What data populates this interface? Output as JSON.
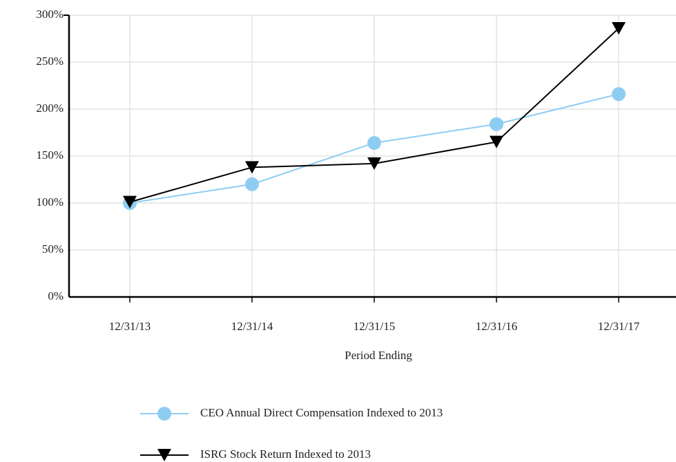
{
  "chart_data": {
    "type": "line",
    "categories": [
      "12/31/13",
      "12/31/14",
      "12/31/15",
      "12/31/16",
      "12/31/17"
    ],
    "series": [
      {
        "name": "CEO Annual Direct Compensation Indexed to 2013",
        "color": "#8ecdf2",
        "marker": "circle",
        "values": [
          100,
          120,
          164,
          184,
          216
        ]
      },
      {
        "name": "ISRG Stock Return Indexed to 2013",
        "color": "#000000",
        "marker": "triangle-down",
        "values": [
          101,
          138,
          142,
          165,
          286
        ]
      }
    ],
    "xlabel": "Period Ending",
    "ylim": [
      0,
      300
    ],
    "yticks": [
      {
        "value": 0,
        "label": "0%"
      },
      {
        "value": 50,
        "label": "50%"
      },
      {
        "value": 100,
        "label": "100%"
      },
      {
        "value": 150,
        "label": "150%"
      },
      {
        "value": 200,
        "label": "200%"
      },
      {
        "value": 250,
        "label": "250%"
      },
      {
        "value": 300,
        "label": "300%"
      }
    ],
    "grid": true,
    "legend": "bottom"
  }
}
